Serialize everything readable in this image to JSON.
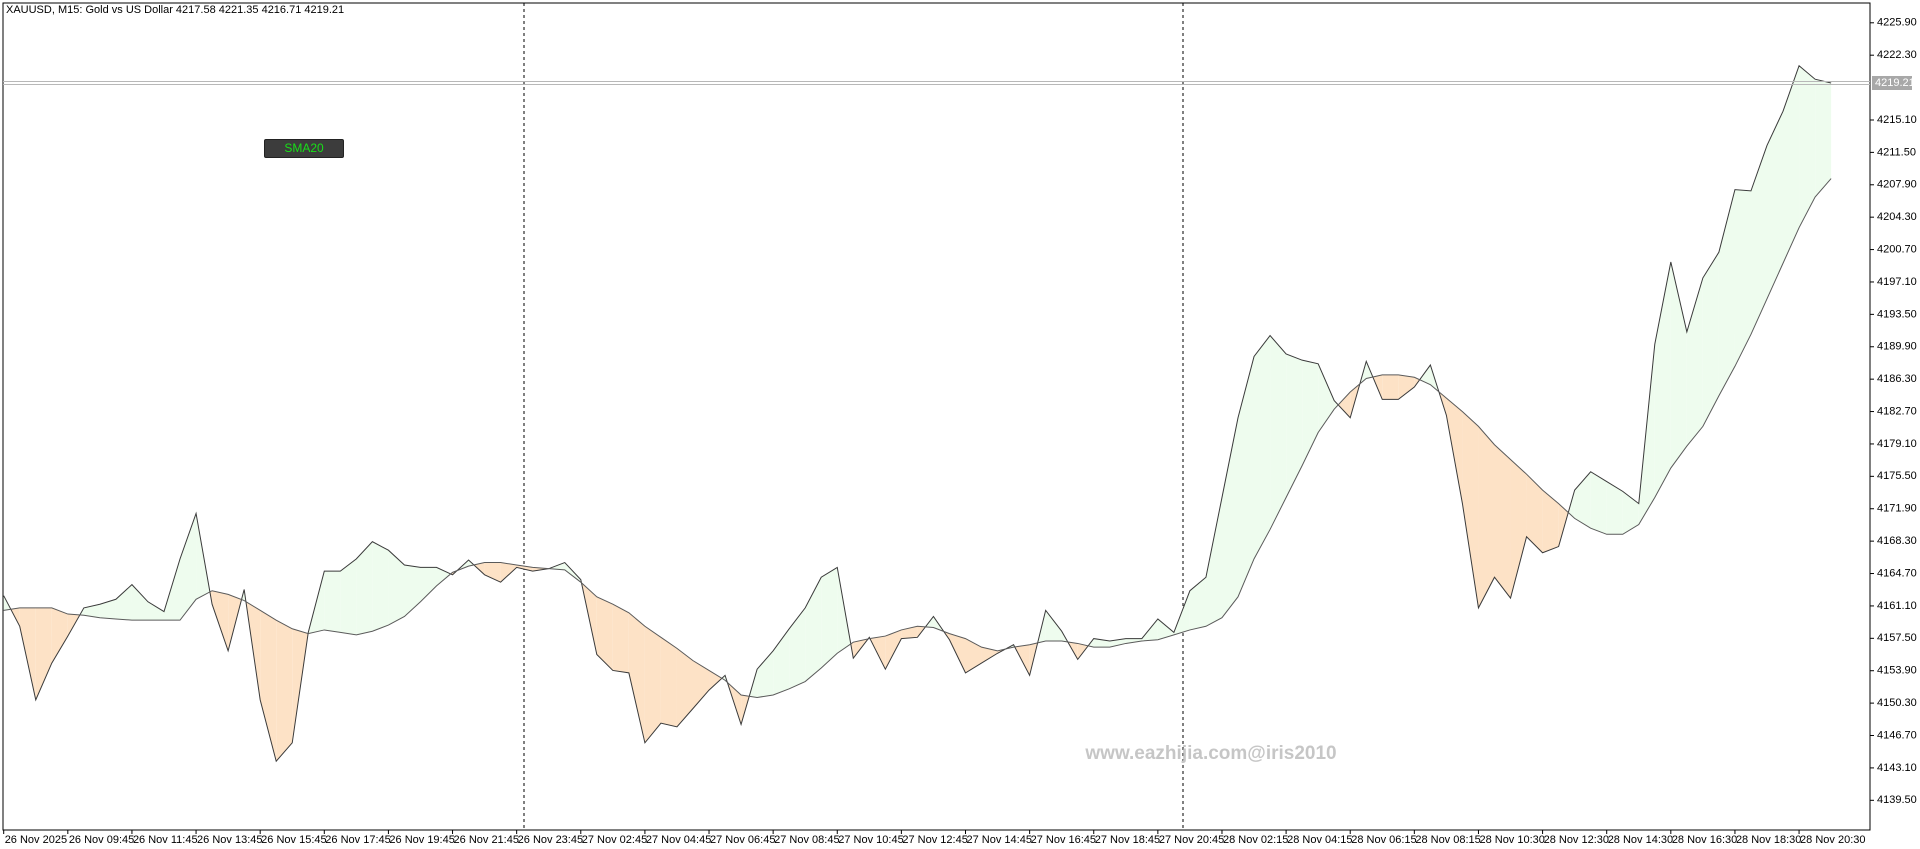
{
  "chart_data": {
    "type": "line",
    "title": "XAUUSD, M15:  Gold vs US Dollar  4217.58 4221.35 4216.71 4219.21",
    "watermark": "www.eazhijia.com@iris2010",
    "categories": [
      "26 Nov 2025",
      null,
      null,
      null,
      "26 Nov 09:45",
      null,
      null,
      null,
      "26 Nov 11:45",
      null,
      null,
      null,
      "26 Nov 13:45",
      null,
      null,
      null,
      "26 Nov 15:45",
      null,
      null,
      null,
      "26 Nov 17:45",
      null,
      null,
      null,
      "26 Nov 19:45",
      null,
      null,
      null,
      "26 Nov 21:45",
      null,
      null,
      null,
      "26 Nov 23:45",
      null,
      null,
      null,
      "27 Nov 02:45",
      null,
      null,
      null,
      "27 Nov 04:45",
      null,
      null,
      null,
      "27 Nov 06:45",
      null,
      null,
      null,
      "27 Nov 08:45",
      null,
      null,
      null,
      "27 Nov 10:45",
      null,
      null,
      null,
      "27 Nov 12:45",
      null,
      null,
      null,
      "27 Nov 14:45",
      null,
      null,
      null,
      "27 Nov 16:45",
      null,
      null,
      null,
      "27 Nov 18:45",
      null,
      null,
      null,
      "27 Nov 20:45",
      null,
      null,
      null,
      "28 Nov 02:15",
      null,
      null,
      null,
      "28 Nov 04:15",
      null,
      null,
      null,
      "28 Nov 06:15",
      null,
      null,
      null,
      "28 Nov 08:15",
      null,
      null,
      null,
      "28 Nov 10:30",
      null,
      null,
      null,
      "28 Nov 12:30",
      null,
      null,
      null,
      "28 Nov 14:30",
      null,
      null,
      null,
      "28 Nov 16:30",
      null,
      null,
      null,
      "28 Nov 18:30",
      null,
      null,
      null,
      "28 Nov 20:30",
      null,
      null
    ],
    "series": [
      {
        "color": "#3a3a3a",
        "values": [
          4162.24,
          4158.84,
          4150.66,
          4154.75,
          4157.75,
          4160.88,
          4161.29,
          4161.84,
          4163.47,
          4161.56,
          4160.47,
          4166.33,
          4171.38,
          4161.29,
          4156.11,
          4162.93,
          4150.66,
          4143.84,
          4145.89,
          4158.16,
          4164.97,
          4164.97,
          4166.33,
          4168.24,
          4167.29,
          4165.65,
          4165.38,
          4165.38,
          4164.56,
          4166.2,
          4164.56,
          4163.74,
          4165.38,
          4164.97,
          4165.24,
          4165.92,
          4164.02,
          4155.7,
          4153.93,
          4153.66,
          4145.89,
          4148.07,
          4147.66,
          4149.7,
          4151.75,
          4153.38,
          4147.93,
          4154.07,
          4156.11,
          4158.56,
          4160.88,
          4164.29,
          4165.38,
          4155.29,
          4157.61,
          4154.07,
          4157.47,
          4157.61,
          4159.93,
          4157.34,
          4153.66,
          4154.75,
          4155.84,
          4156.79,
          4153.38,
          4160.61,
          4158.29,
          4155.16,
          4157.47,
          4157.2,
          4157.47,
          4157.47,
          4159.65,
          4158.16,
          4162.79,
          4164.29,
          4173.15,
          4182.01,
          4188.82,
          4191.14,
          4189.1,
          4188.41,
          4188.01,
          4183.92,
          4182.01,
          4188.28,
          4184.05,
          4184.05,
          4185.42,
          4187.87,
          4182.28,
          4172.47,
          4160.88,
          4164.29,
          4161.97,
          4168.79,
          4167.01,
          4167.7,
          4173.97,
          4176.01,
          4174.92,
          4173.83,
          4172.47,
          4190.19,
          4199.32,
          4191.55,
          4197.55,
          4200.41,
          4207.36,
          4207.22,
          4212.27,
          4216.08,
          4221.13,
          4219.63,
          4219.21
        ]
      },
      {
        "name": "SMA20",
        "color": "#5a5a5a",
        "values": [
          4160.61,
          4160.88,
          4160.88,
          4160.88,
          4160.2,
          4160.06,
          4159.79,
          4159.65,
          4159.52,
          4159.52,
          4159.52,
          4159.52,
          4161.84,
          4162.79,
          4162.38,
          4161.7,
          4160.61,
          4159.52,
          4158.56,
          4158.02,
          4158.43,
          4158.16,
          4157.88,
          4158.29,
          4158.97,
          4159.93,
          4161.56,
          4163.33,
          4164.83,
          4165.52,
          4165.92,
          4165.92,
          4165.65,
          4165.38,
          4165.24,
          4165.11,
          4163.74,
          4162.11,
          4161.29,
          4160.34,
          4158.84,
          4157.61,
          4156.38,
          4155.02,
          4153.93,
          4152.84,
          4151.2,
          4150.93,
          4151.2,
          4151.89,
          4152.7,
          4154.2,
          4155.84,
          4157.07,
          4157.47,
          4157.75,
          4158.43,
          4158.84,
          4158.7,
          4158.02,
          4157.47,
          4156.52,
          4156.11,
          4156.52,
          4156.79,
          4157.2,
          4157.2,
          4156.93,
          4156.52,
          4156.52,
          4156.93,
          4157.2,
          4157.34,
          4157.88,
          4158.43,
          4158.84,
          4159.79,
          4162.11,
          4166.33,
          4169.6,
          4173.15,
          4176.69,
          4180.37,
          4182.96,
          4184.87,
          4186.37,
          4186.78,
          4186.78,
          4186.51,
          4185.69,
          4184.19,
          4182.69,
          4181.05,
          4179.01,
          4177.37,
          4175.74,
          4173.97,
          4172.47,
          4170.83,
          4169.74,
          4169.06,
          4169.06,
          4170.15,
          4173.15,
          4176.42,
          4178.87,
          4181.05,
          4184.46,
          4187.73,
          4191.28,
          4195.23,
          4199.18,
          4203.13,
          4206.54,
          4208.59
        ]
      }
    ],
    "fill_above": "#eefcee",
    "fill_below": "#fde2c6",
    "last_price": 4219.21,
    "ylim": [
      4136.2,
      4228.1
    ],
    "yticks": [
      {
        "value": 4225.9,
        "label": "4225.90"
      },
      {
        "value": 4222.3,
        "label": "4222.30"
      },
      {
        "value": 4215.1,
        "label": "4215.10"
      },
      {
        "value": 4211.5,
        "label": "4211.50"
      },
      {
        "value": 4207.9,
        "label": "4207.90"
      },
      {
        "value": 4204.3,
        "label": "4204.30"
      },
      {
        "value": 4200.7,
        "label": "4200.70"
      },
      {
        "value": 4197.1,
        "label": "4197.10"
      },
      {
        "value": 4193.5,
        "label": "4193.50"
      },
      {
        "value": 4189.9,
        "label": "4189.90"
      },
      {
        "value": 4186.3,
        "label": "4186.30"
      },
      {
        "value": 4182.7,
        "label": "4182.70"
      },
      {
        "value": 4179.1,
        "label": "4179.10"
      },
      {
        "value": 4175.5,
        "label": "4175.50"
      },
      {
        "value": 4171.9,
        "label": "4171.90"
      },
      {
        "value": 4168.3,
        "label": "4168.30"
      },
      {
        "value": 4164.7,
        "label": "4164.70"
      },
      {
        "value": 4161.1,
        "label": "4161.10"
      },
      {
        "value": 4157.5,
        "label": "4157.50"
      },
      {
        "value": 4153.9,
        "label": "4153.90"
      },
      {
        "value": 4150.3,
        "label": "4150.30"
      },
      {
        "value": 4146.7,
        "label": "4146.70"
      },
      {
        "value": 4143.1,
        "label": "4143.10"
      },
      {
        "value": 4139.5,
        "label": "4139.50"
      }
    ]
  }
}
